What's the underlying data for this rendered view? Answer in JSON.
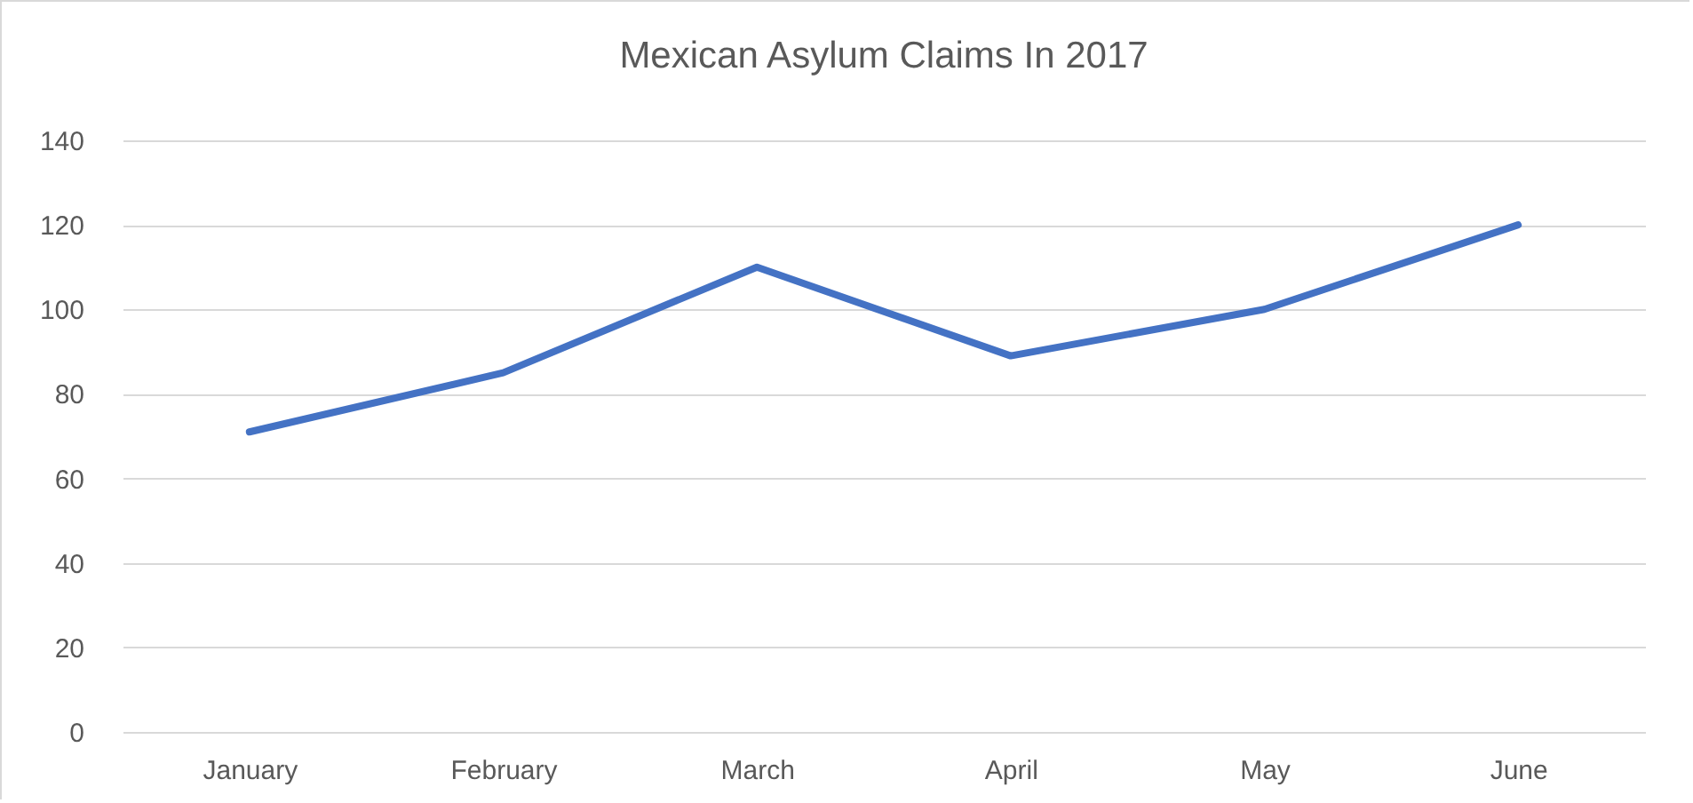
{
  "chart_data": {
    "type": "line",
    "title": "Mexican Asylum Claims In 2017",
    "categories": [
      "January",
      "February",
      "March",
      "April",
      "May",
      "June"
    ],
    "series": [
      {
        "color": "#4472c4",
        "values": [
          71,
          85,
          110,
          89,
          100,
          120
        ]
      }
    ],
    "ylim": [
      0,
      140
    ],
    "yticks": [
      0,
      20,
      40,
      60,
      80,
      100,
      120,
      140
    ],
    "grid": "y",
    "legend": false,
    "marker": "none",
    "line_style": "solid"
  }
}
